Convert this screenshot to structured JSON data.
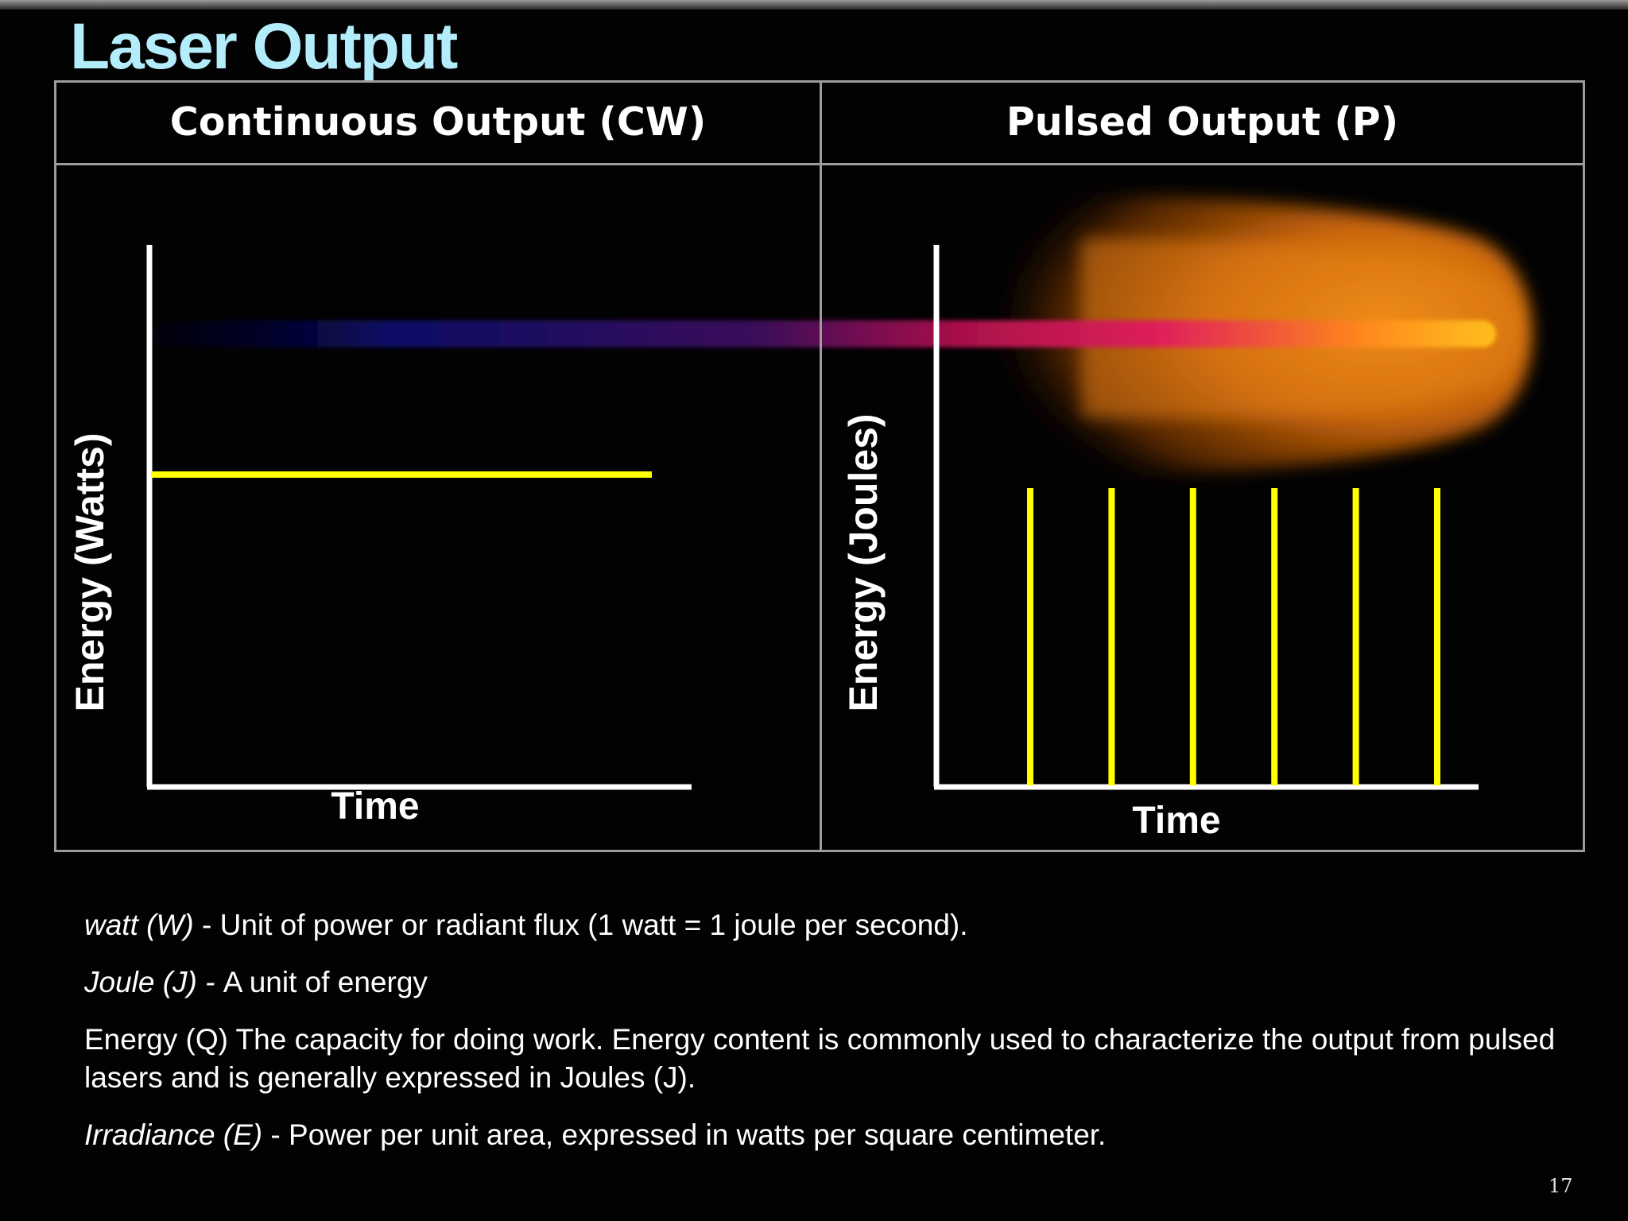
{
  "slide": {
    "title": "Laser Output",
    "page_number": "17"
  },
  "columns": {
    "left": {
      "header": "Continuous Output (CW)",
      "y_axis_label": "Energy (Watts)",
      "x_axis_label": "Time"
    },
    "right": {
      "header": "Pulsed Output (P)",
      "y_axis_label": "Energy (Joules)",
      "x_axis_label": "Time"
    }
  },
  "diagram": {
    "pulse_count": 6,
    "colors": {
      "signal": "#ffff00",
      "axis": "#ffffff",
      "beam_start": "#0a0a6a",
      "beam_mid": "#cc0055",
      "beam_end": "#ffb020"
    }
  },
  "definitions": [
    {
      "term": "watt (W)",
      "separator": " - ",
      "text": " Unit of power or radiant flux (1 watt = 1 joule per second)."
    },
    {
      "term": "Joule (J)",
      "separator": " - ",
      "text": "A unit of energy"
    },
    {
      "term": "",
      "separator": "",
      "text": "Energy (Q) The capacity for doing work. Energy content is commonly used to characterize the output from pulsed lasers and is generally expressed in Joules (J)."
    },
    {
      "term": "Irradiance (E)",
      "separator": " - ",
      "text": "Power per unit area, expressed in watts per square centimeter."
    }
  ]
}
